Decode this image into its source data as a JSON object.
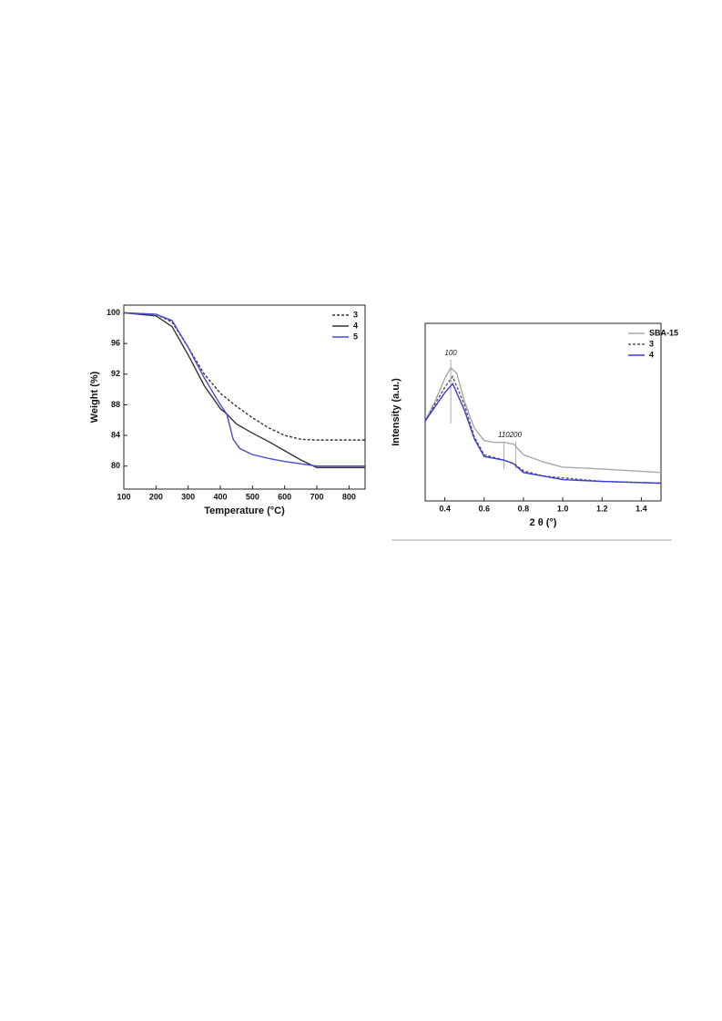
{
  "chart_data": [
    {
      "type": "line",
      "x_label": "Temperature (°C)",
      "y_label": "Weight (%)",
      "xlim": [
        100,
        850
      ],
      "ylim": [
        77,
        101
      ],
      "xticks": [
        100,
        200,
        300,
        400,
        500,
        600,
        700,
        800
      ],
      "yticks": [
        80,
        84,
        88,
        92,
        96,
        100
      ],
      "legend": "upper right",
      "series": [
        {
          "name": "3",
          "color": "#333333",
          "linestyle": "dashed",
          "x": [
            100,
            200,
            250,
            300,
            350,
            400,
            450,
            500,
            550,
            600,
            650,
            700,
            850
          ],
          "values": [
            100,
            99.8,
            98.8,
            95.5,
            92,
            89.5,
            87.8,
            86.3,
            85,
            84,
            83.5,
            83.4,
            83.4
          ]
        },
        {
          "name": "4",
          "color": "#333333",
          "linestyle": "solid",
          "x": [
            100,
            200,
            250,
            300,
            350,
            400,
            420,
            450,
            500,
            550,
            600,
            650,
            700,
            850
          ],
          "values": [
            100,
            99.6,
            98.2,
            94.5,
            90.5,
            87.5,
            86.8,
            85.5,
            84.3,
            83.2,
            82,
            80.8,
            79.8,
            79.8
          ]
        },
        {
          "name": "5",
          "color": "#4a4ae0",
          "linestyle": "solid",
          "x": [
            100,
            200,
            250,
            300,
            350,
            400,
            420,
            440,
            460,
            500,
            550,
            600,
            650,
            700,
            850
          ],
          "values": [
            100,
            99.8,
            99,
            95.5,
            91.5,
            88,
            86.8,
            83.5,
            82.3,
            81.5,
            81,
            80.6,
            80.3,
            80,
            80
          ]
        }
      ]
    },
    {
      "type": "line",
      "x_label": "2 θ (°)",
      "y_label": "Intensity (a.u.)",
      "xlim": [
        0.3,
        1.5
      ],
      "ylim": [
        0,
        100
      ],
      "xticks": [
        0.4,
        0.6,
        0.8,
        {
          "value": 1,
          "label": "1.0"
        },
        1.2,
        1.4
      ],
      "legend": "upper right",
      "annotations": [
        {
          "text": "100",
          "x": 0.43
        },
        {
          "text": "110",
          "x": 0.7
        },
        {
          "text": "200",
          "x": 0.76
        }
      ],
      "series": [
        {
          "name": "SBA-15",
          "color": "#a8a8a8",
          "linestyle": "solid",
          "x": [
            0.3,
            0.35,
            0.4,
            0.43,
            0.46,
            0.5,
            0.55,
            0.6,
            0.65,
            0.7,
            0.75,
            0.8,
            0.9,
            1.0,
            1.2,
            1.5
          ],
          "values": [
            45,
            56,
            69,
            75,
            72,
            56,
            41,
            34,
            33,
            33,
            32,
            26,
            22,
            19,
            18,
            16
          ]
        },
        {
          "name": "3",
          "color": "#555555",
          "linestyle": "dashed",
          "x": [
            0.3,
            0.4,
            0.44,
            0.5,
            0.55,
            0.6,
            0.7,
            0.75,
            0.8,
            0.9,
            1.0,
            1.2,
            1.5
          ],
          "values": [
            45,
            64,
            70,
            54,
            36,
            26,
            23,
            21,
            17,
            14,
            13,
            11,
            10
          ]
        },
        {
          "name": "4",
          "color": "#3a3ae0",
          "linestyle": "solid",
          "x": [
            0.3,
            0.4,
            0.44,
            0.5,
            0.55,
            0.6,
            0.7,
            0.75,
            0.8,
            0.9,
            1.0,
            1.2,
            1.5
          ],
          "values": [
            45,
            61,
            66,
            51,
            35,
            25,
            23,
            21,
            16,
            14,
            12,
            11,
            10
          ]
        }
      ]
    }
  ]
}
